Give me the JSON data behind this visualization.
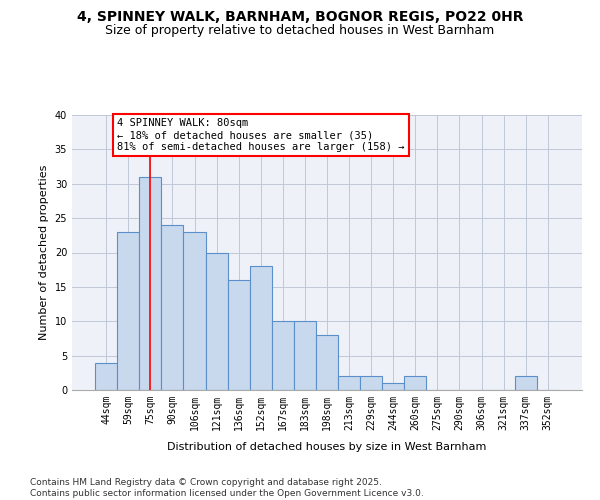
{
  "title_line1": "4, SPINNEY WALK, BARNHAM, BOGNOR REGIS, PO22 0HR",
  "title_line2": "Size of property relative to detached houses in West Barnham",
  "xlabel": "Distribution of detached houses by size in West Barnham",
  "ylabel": "Number of detached properties",
  "categories": [
    "44sqm",
    "59sqm",
    "75sqm",
    "90sqm",
    "106sqm",
    "121sqm",
    "136sqm",
    "152sqm",
    "167sqm",
    "183sqm",
    "198sqm",
    "213sqm",
    "229sqm",
    "244sqm",
    "260sqm",
    "275sqm",
    "290sqm",
    "306sqm",
    "321sqm",
    "337sqm",
    "352sqm"
  ],
  "values": [
    4,
    23,
    31,
    24,
    23,
    20,
    16,
    18,
    10,
    10,
    8,
    2,
    2,
    1,
    2,
    0,
    0,
    0,
    0,
    2,
    0
  ],
  "bar_color": "#c8d9ed",
  "bar_edgecolor": "#5b8fc9",
  "redline_x": 2,
  "annotation_text": "4 SPINNEY WALK: 80sqm\n← 18% of detached houses are smaller (35)\n81% of semi-detached houses are larger (158) →",
  "annotation_box_color": "white",
  "annotation_box_edgecolor": "red",
  "redline_color": "red",
  "ylim": [
    0,
    40
  ],
  "yticks": [
    0,
    5,
    10,
    15,
    20,
    25,
    30,
    35,
    40
  ],
  "grid_color": "#c0c8d8",
  "bg_color": "#eef2f8",
  "footer_line1": "Contains HM Land Registry data © Crown copyright and database right 2025.",
  "footer_line2": "Contains public sector information licensed under the Open Government Licence v3.0.",
  "title_fontsize": 10,
  "subtitle_fontsize": 9,
  "axis_label_fontsize": 8,
  "tick_fontsize": 7,
  "annotation_fontsize": 7.5,
  "footer_fontsize": 6.5
}
